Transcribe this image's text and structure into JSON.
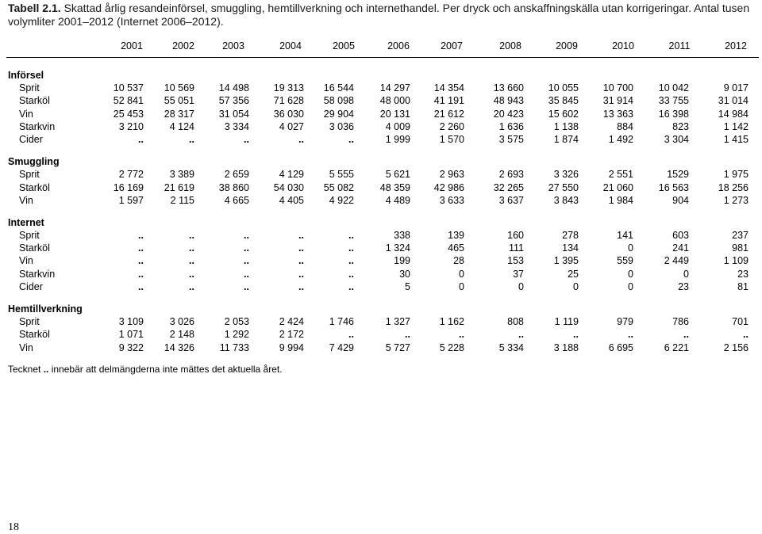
{
  "title": {
    "label": "Tabell 2.1.",
    "text": "Skattad årlig resandeinförsel, smuggling, hemtillverkning och internethandel. Per dryck och anskaffningskälla utan korrigeringar. Antal tusen volymliter 2001–2012 (Internet 2006–2012)."
  },
  "table": {
    "years": [
      "2001",
      "2002",
      "2003",
      "2004",
      "2005",
      "2006",
      "2007",
      "2008",
      "2009",
      "2010",
      "2011",
      "2012"
    ],
    "sections": [
      {
        "title": "Införsel",
        "rows": [
          {
            "label": "Sprit",
            "cells": [
              "10 537",
              "10 569",
              "14 498",
              "19 313",
              "16 544",
              "14 297",
              "14 354",
              "13 660",
              "10 055",
              "10 700",
              "10 042",
              "9 017"
            ]
          },
          {
            "label": "Starköl",
            "cells": [
              "52 841",
              "55 051",
              "57 356",
              "71 628",
              "58 098",
              "48 000",
              "41 191",
              "48 943",
              "35 845",
              "31 914",
              "33 755",
              "31 014"
            ]
          },
          {
            "label": "Vin",
            "cells": [
              "25 453",
              "28 317",
              "31 054",
              "36 030",
              "29 904",
              "20 131",
              "21 612",
              "20 423",
              "15 602",
              "13 363",
              "16 398",
              "14 984"
            ]
          },
          {
            "label": "Starkvin",
            "cells": [
              "3 210",
              "4 124",
              "3 334",
              "4 027",
              "3 036",
              "4 009",
              "2 260",
              "1 636",
              "1 138",
              "884",
              "823",
              "1 142"
            ]
          },
          {
            "label": "Cider",
            "cells": [
              "..",
              "..",
              "..",
              "..",
              "..",
              "1 999",
              "1 570",
              "3 575",
              "1 874",
              "1 492",
              "3 304",
              "1 415"
            ]
          }
        ]
      },
      {
        "title": "Smuggling",
        "rows": [
          {
            "label": "Sprit",
            "cells": [
              "2 772",
              "3 389",
              "2 659",
              "4 129",
              "5 555",
              "5 621",
              "2 963",
              "2 693",
              "3 326",
              "2 551",
              "1529",
              "1 975"
            ]
          },
          {
            "label": "Starköl",
            "cells": [
              "16 169",
              "21 619",
              "38 860",
              "54 030",
              "55 082",
              "48 359",
              "42 986",
              "32 265",
              "27 550",
              "21 060",
              "16 563",
              "18 256"
            ]
          },
          {
            "label": "Vin",
            "cells": [
              "1 597",
              "2 115",
              "4 665",
              "4 405",
              "4 922",
              "4 489",
              "3 633",
              "3 637",
              "3 843",
              "1 984",
              "904",
              "1 273"
            ]
          }
        ]
      },
      {
        "title": "Internet",
        "rows": [
          {
            "label": "Sprit",
            "cells": [
              "..",
              "..",
              "..",
              "..",
              "..",
              "338",
              "139",
              "160",
              "278",
              "141",
              "603",
              "237"
            ]
          },
          {
            "label": "Starköl",
            "cells": [
              "..",
              "..",
              "..",
              "..",
              "..",
              "1 324",
              "465",
              "111",
              "134",
              "0",
              "241",
              "981"
            ]
          },
          {
            "label": "Vin",
            "cells": [
              "..",
              "..",
              "..",
              "..",
              "..",
              "199",
              "28",
              "153",
              "1 395",
              "559",
              "2 449",
              "1 109"
            ]
          },
          {
            "label": "Starkvin",
            "cells": [
              "..",
              "..",
              "..",
              "..",
              "..",
              "30",
              "0",
              "37",
              "25",
              "0",
              "0",
              "23"
            ]
          },
          {
            "label": "Cider",
            "cells": [
              "..",
              "..",
              "..",
              "..",
              "..",
              "5",
              "0",
              "0",
              "0",
              "0",
              "23",
              "81"
            ]
          }
        ]
      },
      {
        "title": "Hemtillverkning",
        "rows": [
          {
            "label": "Sprit",
            "cells": [
              "3 109",
              "3 026",
              "2 053",
              "2 424",
              "1 746",
              "1 327",
              "1 162",
              "808",
              "1 119",
              "979",
              "786",
              "701"
            ]
          },
          {
            "label": "Starköl",
            "cells": [
              "1 071",
              "2 148",
              "1 292",
              "2 172",
              "..",
              "..",
              "..",
              "..",
              "..",
              "..",
              "..",
              ".."
            ]
          },
          {
            "label": "Vin",
            "cells": [
              "9 322",
              "14 326",
              "11 733",
              "9 994",
              "7 429",
              "5 727",
              "5 228",
              "5 334",
              "3 188",
              "6 695",
              "6 221",
              "2 156"
            ]
          }
        ]
      }
    ]
  },
  "footnote": {
    "before": "Tecknet",
    "symbol": "..",
    "after": "innebär att delmängderna inte mättes det aktuella året."
  },
  "page_number": "18"
}
